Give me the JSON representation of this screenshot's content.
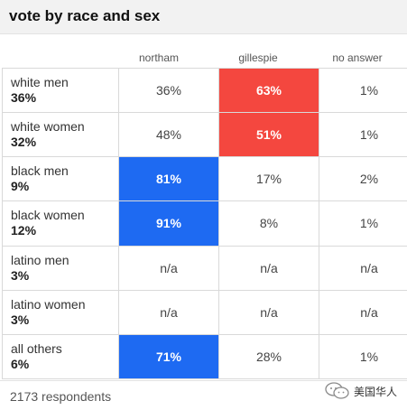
{
  "title": "vote by race and sex",
  "columns": [
    "northam",
    "gillespie",
    "no answer"
  ],
  "rows": [
    {
      "label": "white men",
      "share": "36%",
      "values": [
        "36%",
        "63%",
        "1%"
      ]
    },
    {
      "label": "white women",
      "share": "32%",
      "values": [
        "48%",
        "51%",
        "1%"
      ]
    },
    {
      "label": "black men",
      "share": "9%",
      "values": [
        "81%",
        "17%",
        "2%"
      ]
    },
    {
      "label": "black women",
      "share": "12%",
      "values": [
        "91%",
        "8%",
        "1%"
      ]
    },
    {
      "label": "latino men",
      "share": "3%",
      "values": [
        "n/a",
        "n/a",
        "n/a"
      ]
    },
    {
      "label": "latino women",
      "share": "3%",
      "values": [
        "n/a",
        "n/a",
        "n/a"
      ]
    },
    {
      "label": "all others",
      "share": "6%",
      "values": [
        "71%",
        "28%",
        "1%"
      ]
    }
  ],
  "highlight_colors": {
    "northam": "#1e6af2",
    "gillespie": "#f4473f"
  },
  "footer": {
    "respondents": "2173 respondents"
  },
  "watermark": {
    "text": "美国华人",
    "icon": "wechat-icon"
  }
}
